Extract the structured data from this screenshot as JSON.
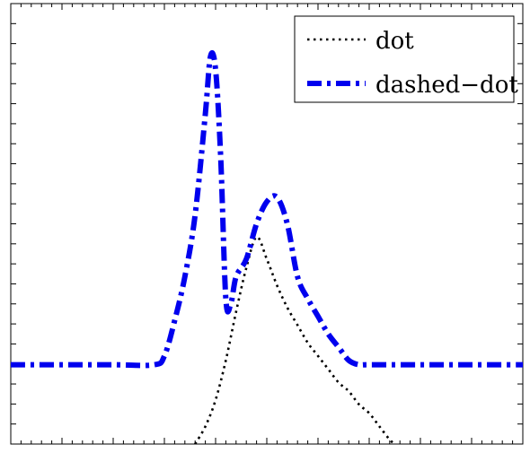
{
  "chart_data": {
    "type": "line",
    "title": "",
    "xlabel": "",
    "ylabel": "",
    "xlim": [
      0,
      10
    ],
    "ylim": [
      0,
      10
    ],
    "tick_labels_shown": false,
    "grid": false,
    "legend_position": "top-right",
    "series": [
      {
        "name": "dot",
        "style": "dotted",
        "color": "#000000",
        "x": [
          3.6,
          3.8,
          4.0,
          4.2,
          4.4,
          4.6,
          4.8,
          5.0,
          5.2,
          5.4,
          5.6,
          5.8,
          6.0,
          6.2,
          6.4,
          6.6,
          6.8,
          7.0,
          7.2,
          7.4,
          7.5
        ],
        "y": [
          0.0,
          0.4,
          1.0,
          1.9,
          3.0,
          4.0,
          4.7,
          4.2,
          3.6,
          3.1,
          2.7,
          2.3,
          2.0,
          1.7,
          1.4,
          1.2,
          0.9,
          0.7,
          0.4,
          0.1,
          0.0
        ]
      },
      {
        "name": "dashed−dot",
        "style": "dashdot",
        "color": "#0000ee",
        "x": [
          0.0,
          1.0,
          2.0,
          2.8,
          3.0,
          3.2,
          3.4,
          3.6,
          3.8,
          3.9,
          4.0,
          4.1,
          4.2,
          4.3,
          4.4,
          4.6,
          4.8,
          5.0,
          5.2,
          5.4,
          5.6,
          5.8,
          6.0,
          6.2,
          6.4,
          6.6,
          6.8,
          7.0,
          8.0,
          9.0,
          10.0
        ],
        "y": [
          1.8,
          1.8,
          1.8,
          1.8,
          2.0,
          2.8,
          3.8,
          5.2,
          7.5,
          8.8,
          8.5,
          6.5,
          3.3,
          3.2,
          3.8,
          4.2,
          5.0,
          5.5,
          5.6,
          5.0,
          3.8,
          3.3,
          2.9,
          2.5,
          2.2,
          1.9,
          1.8,
          1.8,
          1.8,
          1.8,
          1.8
        ]
      }
    ]
  }
}
